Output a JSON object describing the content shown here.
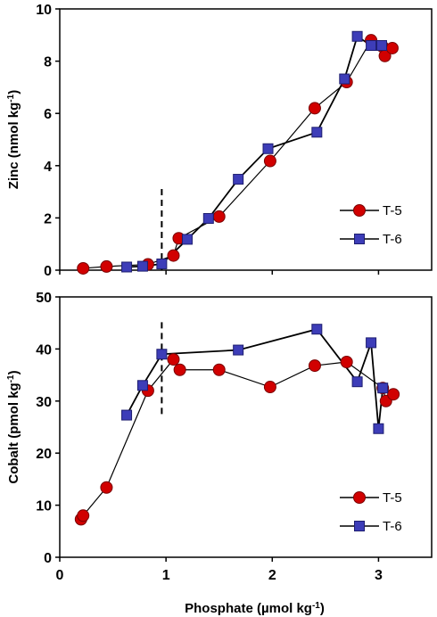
{
  "chart_data": [
    {
      "type": "scatter",
      "ylabel_main": "Zinc (nmol kg",
      "ylabel_sup": "-1",
      "ylabel_tail": ")",
      "xlim": [
        0,
        3.5
      ],
      "ylim": [
        0,
        10
      ],
      "xticks": [
        0,
        1,
        2,
        3
      ],
      "yticks": [
        0,
        2,
        4,
        6,
        8,
        10
      ],
      "show_xtick_labels": false,
      "dashed_line": {
        "x": 0.96,
        "y0": 0,
        "y1": 3.2
      },
      "legend_position": "right-middle",
      "series": [
        {
          "name": "T-5",
          "marker": "circle",
          "color": "#d10000",
          "line_color": "#000000",
          "x": [
            0.22,
            0.44,
            0.83,
            1.07,
            1.12,
            1.5,
            1.98,
            2.4,
            2.7,
            2.93,
            3.04,
            3.06,
            3.13
          ],
          "y": [
            0.07,
            0.14,
            0.22,
            0.56,
            1.22,
            2.05,
            4.18,
            6.2,
            7.2,
            8.8,
            8.55,
            8.2,
            8.5
          ]
        },
        {
          "name": "T-6",
          "marker": "square",
          "color": "#3d3db8",
          "line_color": "#000000",
          "x": [
            0.63,
            0.78,
            0.96,
            1.2,
            1.4,
            1.68,
            1.96,
            2.42,
            2.68,
            2.8,
            2.93,
            3.03
          ],
          "y": [
            0.12,
            0.15,
            0.24,
            1.18,
            1.98,
            3.48,
            4.65,
            5.28,
            7.32,
            8.95,
            8.6,
            8.6
          ]
        }
      ]
    },
    {
      "type": "scatter",
      "ylabel_main": "Cobalt (pmol kg",
      "ylabel_sup": "-1",
      "ylabel_tail": ")",
      "xlabel_main": "Phosphate (µmol kg",
      "xlabel_sup": "-1",
      "xlabel_tail": ")",
      "xlim": [
        0,
        3.5
      ],
      "ylim": [
        0,
        50
      ],
      "xticks": [
        0,
        1,
        2,
        3
      ],
      "yticks": [
        0,
        10,
        20,
        30,
        40,
        50
      ],
      "show_xtick_labels": true,
      "dashed_line": {
        "x": 0.96,
        "y0": 27.5,
        "y1": 46
      },
      "legend_position": "bottom-right",
      "series": [
        {
          "name": "T-5",
          "marker": "circle",
          "color": "#d10000",
          "line_color": "#000000",
          "x": [
            0.2,
            0.22,
            0.44,
            0.83,
            1.07,
            1.13,
            1.5,
            1.98,
            2.4,
            2.7,
            3.04,
            3.07,
            3.14
          ],
          "y": [
            7.3,
            8.0,
            13.4,
            32.0,
            38.0,
            36.0,
            36.0,
            32.7,
            36.8,
            37.5,
            32.5,
            30.0,
            31.3
          ]
        },
        {
          "name": "T-6",
          "marker": "square",
          "color": "#3d3db8",
          "line_color": "#000000",
          "x": [
            0.63,
            0.78,
            0.96,
            1.68,
            2.42,
            2.8,
            2.93,
            3.0,
            3.04
          ],
          "y": [
            27.3,
            33.0,
            39.0,
            39.8,
            43.8,
            33.7,
            41.2,
            24.7,
            32.5
          ]
        }
      ]
    }
  ]
}
